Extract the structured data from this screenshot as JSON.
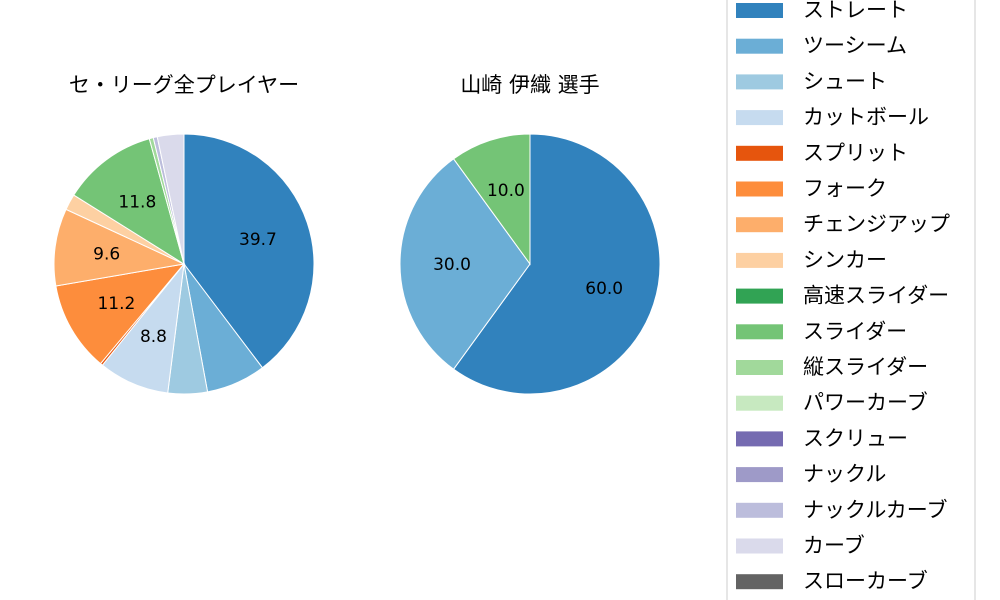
{
  "chart_data": [
    {
      "type": "pie",
      "title": "セ・リーグ全プレイヤー",
      "slices": [
        {
          "label": "ストレート",
          "value": 39.7,
          "color": "#3182bd",
          "shown": "39.7"
        },
        {
          "label": "ツーシーム",
          "value": 7.4,
          "color": "#6baed6",
          "shown": ""
        },
        {
          "label": "シュート",
          "value": 4.9,
          "color": "#9ecae1",
          "shown": ""
        },
        {
          "label": "カットボール",
          "value": 8.8,
          "color": "#c6dbef",
          "shown": "8.8"
        },
        {
          "label": "スプリット",
          "value": 0.3,
          "color": "#e6550d",
          "shown": ""
        },
        {
          "label": "フォーク",
          "value": 11.2,
          "color": "#fd8d3c",
          "shown": "11.2"
        },
        {
          "label": "チェンジアップ",
          "value": 9.6,
          "color": "#fdae6b",
          "shown": "9.6"
        },
        {
          "label": "シンカー",
          "value": 2.0,
          "color": "#fdd0a2",
          "shown": ""
        },
        {
          "label": "高速スライダー",
          "value": 0.0,
          "color": "#31a354",
          "shown": ""
        },
        {
          "label": "スライダー",
          "value": 11.8,
          "color": "#74c476",
          "shown": "11.8"
        },
        {
          "label": "縦スライダー",
          "value": 0.5,
          "color": "#a1d99b",
          "shown": ""
        },
        {
          "label": "パワーカーブ",
          "value": 0.0,
          "color": "#c7e9c0",
          "shown": ""
        },
        {
          "label": "スクリュー",
          "value": 0.0,
          "color": "#756bb1",
          "shown": ""
        },
        {
          "label": "ナックル",
          "value": 0.0,
          "color": "#9e9ac8",
          "shown": ""
        },
        {
          "label": "ナックルカーブ",
          "value": 0.5,
          "color": "#bcbddc",
          "shown": ""
        },
        {
          "label": "カーブ",
          "value": 3.3,
          "color": "#dadaeb",
          "shown": ""
        },
        {
          "label": "スローカーブ",
          "value": 0.0,
          "color": "#636363",
          "shown": ""
        }
      ]
    },
    {
      "type": "pie",
      "title": "山崎 伊織  選手",
      "slices": [
        {
          "label": "ストレート",
          "value": 60.0,
          "color": "#3182bd",
          "shown": "60.0"
        },
        {
          "label": "ツーシーム",
          "value": 30.0,
          "color": "#6baed6",
          "shown": "30.0"
        },
        {
          "label": "スライダー",
          "value": 10.0,
          "color": "#74c476",
          "shown": "10.0"
        }
      ]
    }
  ],
  "legend": {
    "placement": "right",
    "items": [
      {
        "label": "ストレート",
        "color": "#3182bd"
      },
      {
        "label": "ツーシーム",
        "color": "#6baed6"
      },
      {
        "label": "シュート",
        "color": "#9ecae1"
      },
      {
        "label": "カットボール",
        "color": "#c6dbef"
      },
      {
        "label": "スプリット",
        "color": "#e6550d"
      },
      {
        "label": "フォーク",
        "color": "#fd8d3c"
      },
      {
        "label": "チェンジアップ",
        "color": "#fdae6b"
      },
      {
        "label": "シンカー",
        "color": "#fdd0a2"
      },
      {
        "label": "高速スライダー",
        "color": "#31a354"
      },
      {
        "label": "スライダー",
        "color": "#74c476"
      },
      {
        "label": "縦スライダー",
        "color": "#a1d99b"
      },
      {
        "label": "パワーカーブ",
        "color": "#c7e9c0"
      },
      {
        "label": "スクリュー",
        "color": "#756bb1"
      },
      {
        "label": "ナックル",
        "color": "#9e9ac8"
      },
      {
        "label": "ナックルカーブ",
        "color": "#bcbddc"
      },
      {
        "label": "カーブ",
        "color": "#dadaeb"
      },
      {
        "label": "スローカーブ",
        "color": "#636363"
      }
    ]
  }
}
